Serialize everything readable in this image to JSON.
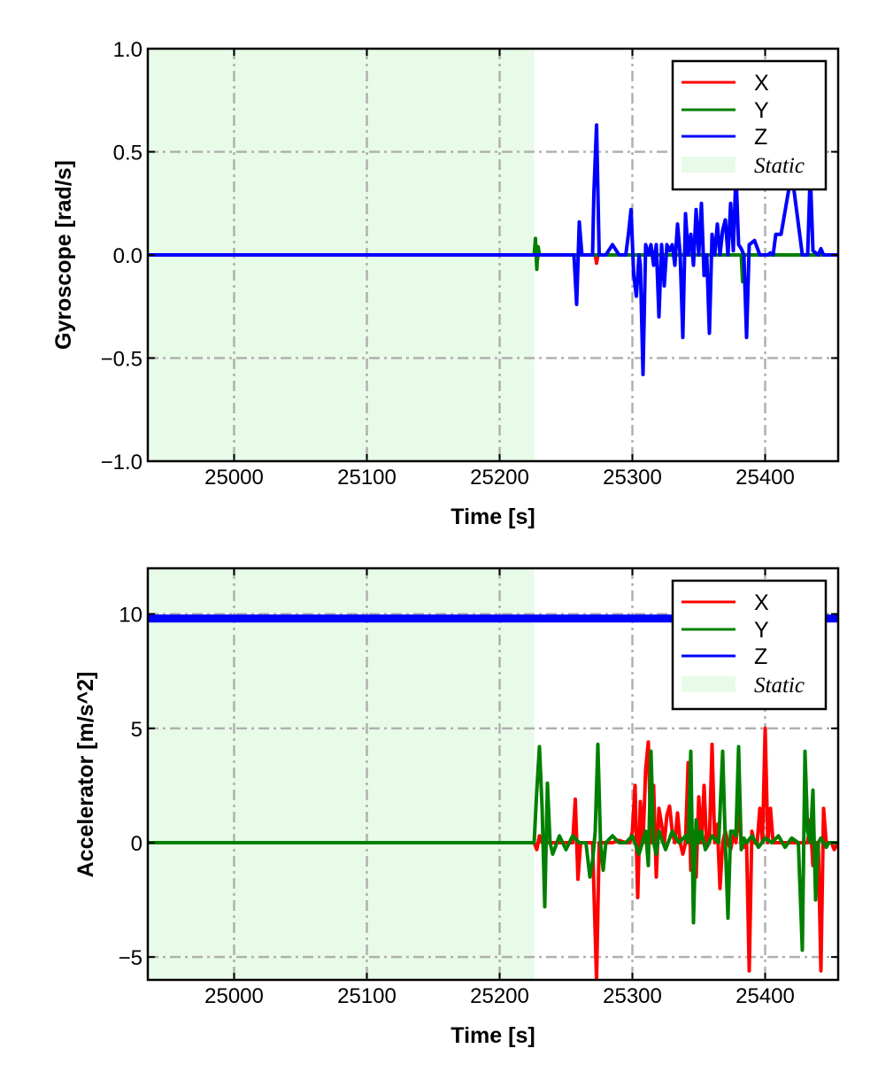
{
  "chart_data": [
    {
      "type": "line",
      "ylabel": "Gyroscope [rad/s]",
      "xlabel": "Time [s]",
      "xlim": [
        24935,
        25455
      ],
      "ylim": [
        -1.0,
        1.0
      ],
      "x_ticks": [
        25000,
        25100,
        25200,
        25300,
        25400
      ],
      "y_ticks": [
        -1.0,
        -0.5,
        0.0,
        0.5,
        1.0
      ],
      "y_tick_labels": [
        "−1.0",
        "−0.5",
        "0.0",
        "0.5",
        "1.0"
      ],
      "grid": true,
      "legend_position": "top-right",
      "static_region": {
        "label": "Static",
        "x_start": 24935,
        "x_end": 25226,
        "color": "#e8fbe8"
      },
      "series": [
        {
          "name": "X",
          "color": "#ff0000",
          "x": [
            24935,
            25226,
            25227,
            25228,
            25229,
            25272,
            25273,
            25274,
            25455
          ],
          "y": [
            0,
            0,
            0.03,
            -0.04,
            0,
            0,
            -0.04,
            0,
            0
          ]
        },
        {
          "name": "Y",
          "color": "#008000",
          "x": [
            24935,
            25226,
            25227,
            25228,
            25229,
            25230,
            25382,
            25383,
            25384,
            25455
          ],
          "y": [
            0,
            0,
            0.08,
            -0.07,
            0.04,
            0,
            0,
            -0.13,
            0,
            0
          ]
        },
        {
          "name": "Z",
          "color": "#0000ff",
          "x": [
            24935,
            25256,
            25258,
            25260,
            25262,
            25265,
            25270,
            25271,
            25273,
            25275,
            25280,
            25285,
            25290,
            25295,
            25297,
            25299,
            25301,
            25303,
            25305,
            25306,
            25308,
            25310,
            25312,
            25314,
            25316,
            25318,
            25320,
            25322,
            25324,
            25326,
            25328,
            25330,
            25332,
            25334,
            25336,
            25338,
            25340,
            25342,
            25344,
            25346,
            25348,
            25350,
            25352,
            25354,
            25356,
            25358,
            25360,
            25362,
            25364,
            25366,
            25368,
            25370,
            25372,
            25374,
            25376,
            25378,
            25380,
            25382,
            25384,
            25386,
            25388,
            25392,
            25396,
            25400,
            25402,
            25404,
            25406,
            25408,
            25412,
            25420,
            25428,
            25430,
            25432,
            25434,
            25436,
            25440,
            25442,
            25444,
            25446,
            25448,
            25450,
            25452,
            25455
          ],
          "y": [
            0,
            0,
            -0.24,
            0.16,
            0,
            0,
            0,
            0.3,
            0.63,
            0,
            0,
            0.05,
            0,
            0,
            0.1,
            0.22,
            -0.1,
            -0.2,
            0,
            -0.05,
            -0.58,
            0.05,
            0,
            0.05,
            -0.05,
            0.05,
            -0.3,
            0.05,
            -0.15,
            0.05,
            0.02,
            0.05,
            -0.05,
            0.15,
            0,
            -0.4,
            0.2,
            0,
            0.1,
            -0.05,
            0.22,
            0,
            0.25,
            -0.1,
            0,
            -0.38,
            0.1,
            0,
            0.15,
            0,
            0.12,
            0.17,
            0,
            0.25,
            0.02,
            0.4,
            0.05,
            0.03,
            0,
            -0.4,
            0.05,
            0.07,
            0,
            0,
            0,
            0.01,
            0,
            0.1,
            0.1,
            0.4,
            0,
            0,
            0,
            0.4,
            0.02,
            0,
            0.03,
            0,
            0,
            0,
            0,
            0,
            0
          ]
        }
      ]
    },
    {
      "type": "line",
      "ylabel": "Accelerator [m/s^2]",
      "xlabel": "Time [s]",
      "xlim": [
        24935,
        25455
      ],
      "ylim": [
        -6,
        12
      ],
      "x_ticks": [
        25000,
        25100,
        25200,
        25300,
        25400
      ],
      "y_ticks": [
        -5,
        0,
        5,
        10
      ],
      "y_tick_labels": [
        "−5",
        "0",
        "5",
        "10"
      ],
      "grid": true,
      "legend_position": "top-right",
      "static_region": {
        "label": "Static",
        "x_start": 24935,
        "x_end": 25226,
        "color": "#e8fbe8"
      },
      "series": [
        {
          "name": "X",
          "color": "#ff0000",
          "x": [
            24935,
            25226,
            25228,
            25230,
            25232,
            25234,
            25236,
            25240,
            25245,
            25255,
            25257,
            25259,
            25261,
            25265,
            25270,
            25273,
            25275,
            25277,
            25280,
            25285,
            25290,
            25295,
            25298,
            25300,
            25302,
            25304,
            25306,
            25308,
            25310,
            25312,
            25314,
            25316,
            25318,
            25320,
            25322,
            25324,
            25326,
            25328,
            25330,
            25332,
            25334,
            25336,
            25338,
            25340,
            25342,
            25344,
            25346,
            25348,
            25350,
            25352,
            25354,
            25356,
            25358,
            25360,
            25362,
            25364,
            25366,
            25368,
            25370,
            25372,
            25374,
            25376,
            25378,
            25380,
            25382,
            25384,
            25386,
            25388,
            25390,
            25392,
            25394,
            25396,
            25398,
            25400,
            25402,
            25404,
            25406,
            25410,
            25420,
            25430,
            25432,
            25434,
            25436,
            25438,
            25440,
            25442,
            25444,
            25446,
            25448,
            25450,
            25452,
            25455
          ],
          "y": [
            0,
            0,
            -0.3,
            0.3,
            0,
            0.1,
            0,
            0,
            0,
            0,
            1.9,
            -1.6,
            0,
            0,
            0,
            -6,
            0,
            0,
            0,
            0,
            0.1,
            0,
            0,
            0.5,
            2.5,
            -2.4,
            1.8,
            0,
            3.2,
            4.4,
            0,
            2.5,
            -1.5,
            1.5,
            0.8,
            0,
            1.2,
            1.6,
            0.5,
            0,
            1.3,
            0,
            -0.5,
            0,
            3.5,
            -1.2,
            0.5,
            -1.5,
            2,
            0,
            2.5,
            -0.2,
            0,
            4.3,
            0,
            0.8,
            -2,
            0,
            0.5,
            0,
            -0.3,
            0.3,
            0,
            1.5,
            0,
            -0.2,
            0,
            -5.6,
            0.5,
            0,
            0,
            1.5,
            0,
            5,
            0,
            1.5,
            0,
            0,
            0,
            0,
            0,
            1,
            -1,
            0,
            0,
            -5.6,
            1.5,
            0,
            0,
            0,
            -0.3,
            0
          ]
        },
        {
          "name": "Y",
          "color": "#008000",
          "x": [
            24935,
            25226,
            25228,
            25230,
            25232,
            25234,
            25236,
            25238,
            25240,
            25245,
            25250,
            25255,
            25260,
            25265,
            25268,
            25270,
            25272,
            25274,
            25276,
            25278,
            25280,
            25285,
            25290,
            25295,
            25300,
            25305,
            25310,
            25312,
            25314,
            25316,
            25318,
            25320,
            25325,
            25330,
            25335,
            25340,
            25342,
            25344,
            25346,
            25348,
            25350,
            25352,
            25355,
            25360,
            25365,
            25368,
            25370,
            25372,
            25374,
            25376,
            25378,
            25380,
            25382,
            25384,
            25386,
            25390,
            25395,
            25400,
            25405,
            25410,
            25415,
            25420,
            25425,
            25428,
            25430,
            25432,
            25434,
            25436,
            25438,
            25440,
            25442,
            25444,
            25446,
            25448,
            25455
          ],
          "y": [
            0,
            0,
            2.3,
            4.2,
            1.5,
            -2.8,
            2.6,
            0,
            -0.5,
            0.3,
            -0.3,
            0.3,
            0,
            0,
            -1.5,
            -0.8,
            0.5,
            4.3,
            0,
            -1.2,
            0,
            0.3,
            0,
            0,
            0.3,
            -0.5,
            0.5,
            -1,
            4,
            0,
            -0.5,
            0.5,
            -0.3,
            0.5,
            0,
            0.3,
            0,
            4,
            -3.5,
            1,
            0,
            0.5,
            -0.3,
            0.3,
            0,
            4,
            0,
            -3.3,
            0.5,
            0.5,
            0.3,
            4.2,
            -0.3,
            0.2,
            0,
            0.3,
            -0.2,
            0.2,
            0,
            0.3,
            -0.2,
            0.2,
            0,
            -4.7,
            4,
            0.5,
            0,
            2.3,
            -2.5,
            0,
            0.2,
            0,
            -0.2,
            0,
            0
          ]
        },
        {
          "name": "Z",
          "color": "#0000ff",
          "x": [
            24935,
            25455
          ],
          "y": [
            9.8,
            9.8
          ]
        }
      ]
    }
  ]
}
